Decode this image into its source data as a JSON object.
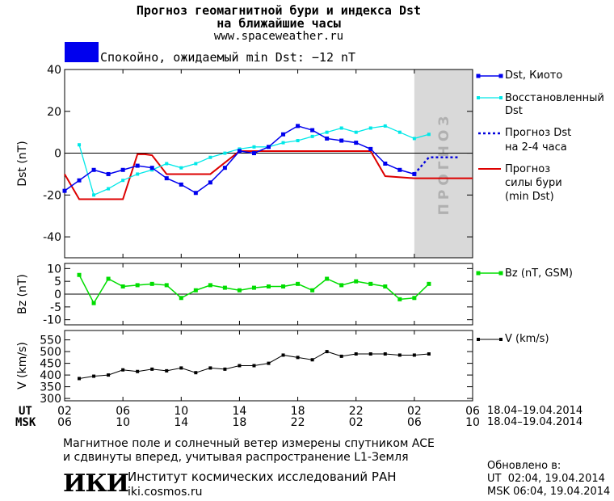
{
  "header": {
    "title_line1": "Прогноз геомагнитной бури и индекса Dst",
    "title_line2": "на ближайшие часы",
    "url": "www.spaceweather.ru"
  },
  "status": {
    "color": "#0000ee",
    "text": "Спокойно, ожидаемый min Dst: −12 nT"
  },
  "forecast_zone_label": "ПРОГНОЗ",
  "colors": {
    "dst_kyoto": "#0000ee",
    "dst_restored": "#00e8e8",
    "dst_forecast": "#0000dd",
    "storm_forecast": "#dd0000",
    "bz": "#00dd00",
    "speed": "#000000",
    "forecast_zone": "#d9d9d9"
  },
  "legend": {
    "dst_kyoto": "Dst, Киото",
    "dst_restored_line1": "Восстановленный",
    "dst_restored_line2": "Dst",
    "dst_forecast_line1": "Прогноз Dst",
    "dst_forecast_line2": "на 2-4 часа",
    "storm_line1": "Прогноз",
    "storm_line2": "силы бури",
    "storm_line3": "(min Dst)",
    "bz": "Bz (nT, GSM)",
    "speed": "V (km/s)"
  },
  "time_axis": {
    "ut_label": "UT",
    "msk_label": "MSK",
    "ut_ticks": [
      "02",
      "06",
      "10",
      "14",
      "18",
      "22",
      "02",
      "06"
    ],
    "msk_ticks": [
      "06",
      "10",
      "14",
      "18",
      "22",
      "02",
      "06",
      "10"
    ],
    "date_range_ut": "18.04–19.04.2014",
    "date_range_msk": "18.04–19.04.2014"
  },
  "chart_data": [
    {
      "type": "line",
      "ylabel": "Dst (nT)",
      "ylim": [
        -50,
        40
      ],
      "yticks": [
        -40,
        -20,
        0,
        20,
        40
      ],
      "xlim_hours": [
        0,
        28
      ],
      "forecast_zone_hours": [
        24,
        28
      ],
      "series": [
        {
          "name": "Dst, Киото",
          "x": [
            0,
            1,
            2,
            3,
            4,
            5,
            6,
            7,
            8,
            9,
            10,
            11,
            12,
            13,
            14,
            15,
            16,
            17,
            18,
            19,
            20,
            21,
            22,
            23,
            24
          ],
          "values": [
            -18,
            -13,
            -8,
            -10,
            -8,
            -6,
            -7,
            -12,
            -15,
            -19,
            -14,
            -7,
            1,
            0,
            3,
            9,
            13,
            11,
            7,
            6,
            5,
            2,
            -5,
            -8,
            -10
          ]
        },
        {
          "name": "Восстановленный Dst",
          "x": [
            1,
            2,
            3,
            4,
            5,
            6,
            7,
            8,
            9,
            10,
            11,
            12,
            13,
            14,
            15,
            16,
            17,
            18,
            19,
            20,
            21,
            22,
            23,
            24,
            25
          ],
          "values": [
            4,
            -20,
            -17,
            -13,
            -10,
            -8,
            -5,
            -7,
            -5,
            -2,
            0,
            2,
            3,
            3,
            5,
            6,
            8,
            10,
            12,
            10,
            12,
            13,
            10,
            7,
            9
          ]
        },
        {
          "name": "Прогноз Dst на 2-4 часа",
          "x": [
            24,
            25,
            26,
            27
          ],
          "values": [
            -10,
            -2,
            -2,
            -2
          ]
        },
        {
          "name": "Прогноз силы бури (min Dst)",
          "x": [
            0,
            1,
            4,
            5,
            5.5,
            6,
            7,
            9,
            10,
            12,
            21,
            22,
            24,
            28
          ],
          "values": [
            -10,
            -22,
            -22,
            -0.5,
            -0.5,
            -1,
            -10,
            -10,
            -10,
            1,
            1,
            -11,
            -12,
            -12
          ]
        }
      ]
    },
    {
      "type": "line",
      "ylabel": "Bz (nT)",
      "ylim": [
        -12,
        12
      ],
      "yticks": [
        -10,
        -5,
        0,
        5,
        10
      ],
      "series": [
        {
          "name": "Bz (nT, GSM)",
          "x": [
            1,
            2,
            3,
            4,
            5,
            6,
            7,
            8,
            9,
            10,
            11,
            12,
            13,
            14,
            15,
            16,
            17,
            18,
            19,
            20,
            21,
            22,
            23,
            24,
            25
          ],
          "values": [
            7.5,
            -3.5,
            6,
            3,
            3.5,
            4,
            3.5,
            -1.5,
            1.5,
            3.5,
            2.5,
            1.5,
            2.5,
            3,
            3,
            4,
            1.5,
            6,
            3.5,
            5,
            4,
            3,
            -2,
            -1.5,
            4
          ]
        }
      ]
    },
    {
      "type": "line",
      "ylabel": "V (km/s)",
      "ylim": [
        290,
        590
      ],
      "yticks": [
        300,
        350,
        400,
        450,
        500,
        550
      ],
      "series": [
        {
          "name": "V (km/s)",
          "x": [
            1,
            2,
            3,
            4,
            5,
            6,
            7,
            8,
            9,
            10,
            11,
            12,
            13,
            14,
            15,
            16,
            17,
            18,
            19,
            20,
            21,
            22,
            23,
            24,
            25
          ],
          "values": [
            385,
            395,
            400,
            422,
            415,
            425,
            418,
            430,
            410,
            430,
            425,
            440,
            440,
            450,
            485,
            475,
            465,
            500,
            480,
            490,
            490,
            490,
            485,
            485,
            490
          ]
        }
      ]
    }
  ],
  "footer": {
    "note_line1": "Магнитное поле и солнечный ветер измерены спутником ACE",
    "note_line2": "и сдвинуты вперед, учитывая распространение L1-Земля",
    "institute_logo": "ИКИ",
    "institute_name": "Институт космических исследований РАН",
    "institute_url": "iki.cosmos.ru",
    "updated_label": "Обновлено в:",
    "updated_ut": "UT  02:04, 19.04.2014",
    "updated_msk": "MSK 06:04, 19.04.2014"
  }
}
